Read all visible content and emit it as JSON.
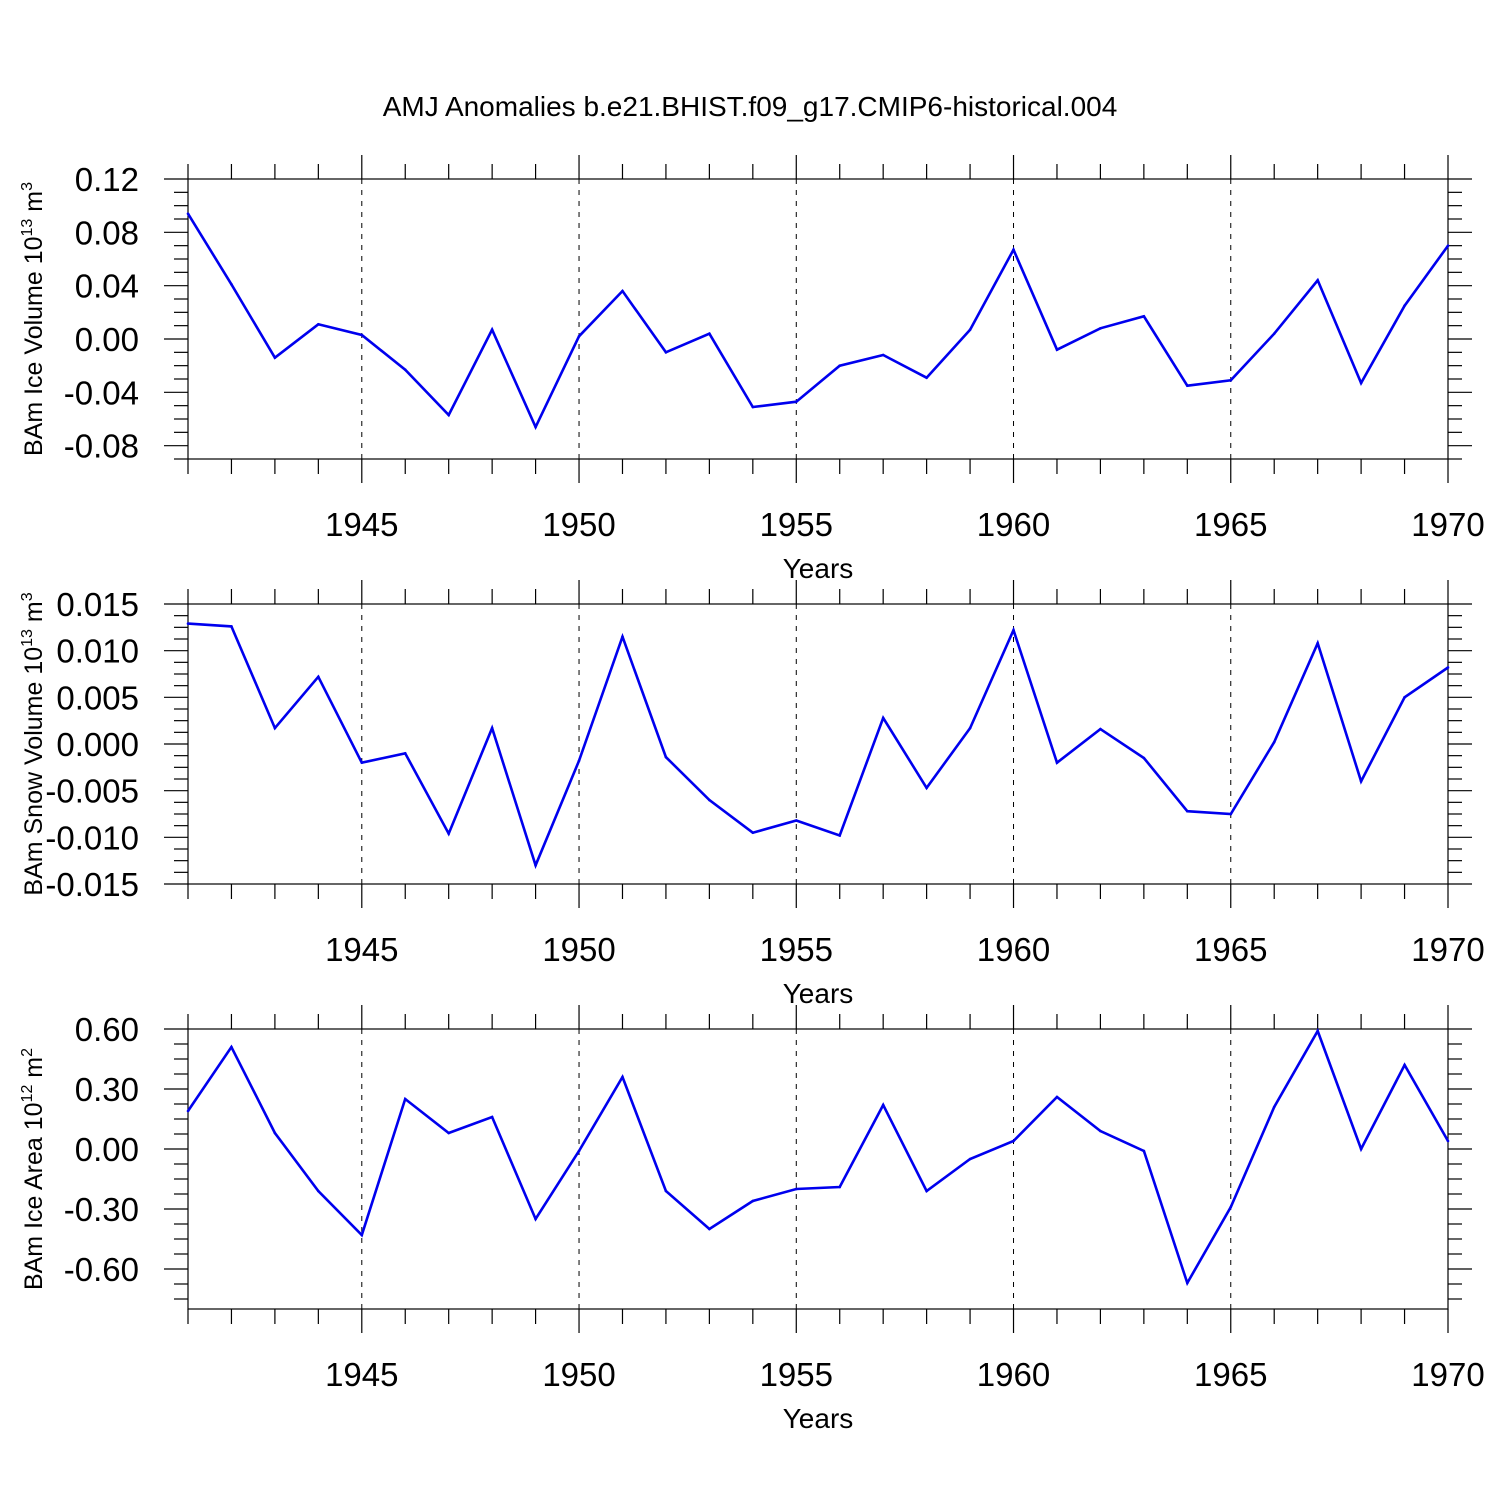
{
  "figure_title": "AMJ Anomalies b.e21.BHIST.f09_g17.CMIP6-historical.004",
  "colors": {
    "line": "#0000ee",
    "axes": "#000000",
    "grid": "#000000",
    "background": "#ffffff"
  },
  "chart_data": [
    {
      "type": "line",
      "title": "AMJ Anomalies b.e21.BHIST.f09_g17.CMIP6-historical.004",
      "ylabel": {
        "main": "BAm Ice Volume 10",
        "sup": "13",
        "unit": " m",
        "unit_sup": "3"
      },
      "xlabel": "Years",
      "xlim": [
        1941,
        1970
      ],
      "ylim": [
        -0.09,
        0.12
      ],
      "yticks": [
        -0.08,
        -0.04,
        0.0,
        0.04,
        0.08,
        0.12
      ],
      "ytick_labels": [
        "-0.08",
        "-0.04",
        "0.00",
        "0.04",
        "0.08",
        "0.12"
      ],
      "xticks": [
        1945,
        1950,
        1955,
        1960,
        1965,
        1970
      ],
      "xtick_labels": [
        "1945",
        "1950",
        "1955",
        "1960",
        "1965",
        "1970"
      ],
      "grid": "vertical dashed at major x ticks",
      "x": [
        1941,
        1942,
        1943,
        1944,
        1945,
        1946,
        1947,
        1948,
        1949,
        1950,
        1951,
        1952,
        1953,
        1954,
        1955,
        1956,
        1957,
        1958,
        1959,
        1960,
        1961,
        1962,
        1963,
        1964,
        1965,
        1966,
        1967,
        1968,
        1969,
        1970
      ],
      "y": [
        0.094,
        0.041,
        -0.014,
        0.011,
        0.003,
        -0.023,
        -0.057,
        0.007,
        -0.066,
        0.002,
        0.036,
        -0.01,
        0.004,
        -0.051,
        -0.047,
        -0.02,
        -0.012,
        -0.029,
        0.007,
        0.067,
        -0.008,
        0.008,
        0.017,
        -0.035,
        -0.031,
        0.004,
        0.044,
        -0.033,
        0.025,
        0.07
      ]
    },
    {
      "type": "line",
      "ylabel": {
        "main": "BAm Snow Volume 10",
        "sup": "13",
        "unit": " m",
        "unit_sup": "3"
      },
      "xlabel": "Years",
      "xlim": [
        1941,
        1970
      ],
      "ylim": [
        -0.015,
        0.015
      ],
      "yticks": [
        -0.015,
        -0.01,
        -0.005,
        0.0,
        0.005,
        0.01,
        0.015
      ],
      "ytick_labels": [
        "-0.015",
        "-0.010",
        "-0.005",
        "0.000",
        "0.005",
        "0.010",
        "0.015"
      ],
      "xticks": [
        1945,
        1950,
        1955,
        1960,
        1965,
        1970
      ],
      "xtick_labels": [
        "1945",
        "1950",
        "1955",
        "1960",
        "1965",
        "1970"
      ],
      "grid": "vertical dashed at major x ticks",
      "x": [
        1941,
        1942,
        1943,
        1944,
        1945,
        1946,
        1947,
        1948,
        1949,
        1950,
        1951,
        1952,
        1953,
        1954,
        1955,
        1956,
        1957,
        1958,
        1959,
        1960,
        1961,
        1962,
        1963,
        1964,
        1965,
        1966,
        1967,
        1968,
        1969,
        1970
      ],
      "y": [
        0.0129,
        0.0126,
        0.0017,
        0.0072,
        -0.002,
        -0.001,
        -0.0096,
        0.0017,
        -0.013,
        -0.0018,
        0.0115,
        -0.0014,
        -0.006,
        -0.0095,
        -0.0082,
        -0.0098,
        0.0028,
        -0.0047,
        0.0017,
        0.0122,
        -0.002,
        0.0016,
        -0.0015,
        -0.0072,
        -0.0075,
        0.0002,
        0.0108,
        -0.004,
        0.005,
        0.0082
      ]
    },
    {
      "type": "line",
      "ylabel": {
        "main": "BAm Ice Area 10",
        "sup": "12",
        "unit": " m",
        "unit_sup": "2"
      },
      "xlabel": "Years",
      "xlim": [
        1941,
        1970
      ],
      "ylim": [
        -0.8,
        0.6
      ],
      "yticks": [
        -0.6,
        -0.3,
        0.0,
        0.3,
        0.6
      ],
      "ytick_labels": [
        "-0.60",
        "-0.30",
        "0.00",
        "0.30",
        "0.60"
      ],
      "xticks": [
        1945,
        1950,
        1955,
        1960,
        1965,
        1970
      ],
      "xtick_labels": [
        "1945",
        "1950",
        "1955",
        "1960",
        "1965",
        "1970"
      ],
      "grid": "vertical dashed at major x ticks",
      "x": [
        1941,
        1942,
        1943,
        1944,
        1945,
        1946,
        1947,
        1948,
        1949,
        1950,
        1951,
        1952,
        1953,
        1954,
        1955,
        1956,
        1957,
        1958,
        1959,
        1960,
        1961,
        1962,
        1963,
        1964,
        1965,
        1966,
        1967,
        1968,
        1969,
        1970
      ],
      "y": [
        0.19,
        0.51,
        0.08,
        -0.21,
        -0.43,
        0.25,
        0.08,
        0.16,
        -0.35,
        -0.01,
        0.36,
        -0.21,
        -0.4,
        -0.26,
        -0.2,
        -0.19,
        0.22,
        -0.21,
        -0.05,
        0.04,
        0.26,
        0.09,
        -0.01,
        -0.67,
        -0.29,
        0.21,
        0.59,
        0.0,
        0.42,
        0.04
      ]
    }
  ]
}
